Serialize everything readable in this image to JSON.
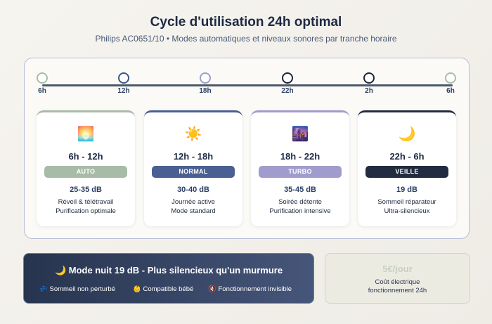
{
  "header": {
    "title": "Cycle d'utilisation 24h optimal",
    "subtitle": "Philips AC0651/10 • Modes automatiques et niveaux sonores par tranche horaire"
  },
  "timeline": {
    "ticks": [
      "6h",
      "12h",
      "18h",
      "22h",
      "2h",
      "6h"
    ],
    "dot_colors": [
      "#a9bda6",
      "#3f5688",
      "#9aa0c8",
      "#1c2536",
      "#1c2536",
      "#a9bda6"
    ]
  },
  "cards": [
    {
      "icon": "sunrise-icon",
      "glyph": "🌅",
      "hours": "6h - 12h",
      "badge": "AUTO",
      "badge_color": "#a7bba6",
      "db": "25-35 dB",
      "line1": "Réveil & télétravail",
      "line2": "Purification optimale"
    },
    {
      "icon": "sun-icon",
      "glyph": "☀️",
      "hours": "12h - 18h",
      "badge": "NORMAL",
      "badge_color": "#4a5f92",
      "db": "30-40 dB",
      "line1": "Journée active",
      "line2": "Mode standard"
    },
    {
      "icon": "city-dusk-icon",
      "glyph": "🌆",
      "hours": "18h - 22h",
      "badge": "TURBO",
      "badge_color": "#a09ccd",
      "db": "35-45 dB",
      "line1": "Soirée détente",
      "line2": "Purification intensive"
    },
    {
      "icon": "moon-icon",
      "glyph": "🌙",
      "hours": "22h - 6h",
      "badge": "VEILLE",
      "badge_color": "#222c40",
      "db": "19 dB",
      "line1": "Sommeil réparateur",
      "line2": "Ultra-silencieux"
    }
  ],
  "night_mode": {
    "icon": "moon-icon",
    "glyph": "🌙",
    "title": "Mode nuit 19 dB - Plus silencieux qu'un murmure",
    "features": [
      {
        "icon": "sleep-icon",
        "glyph": "💤",
        "label": "Sommeil non perturbé"
      },
      {
        "icon": "baby-icon",
        "glyph": "👶",
        "label": "Compatible bébé"
      },
      {
        "icon": "mute-icon",
        "glyph": "🔇",
        "label": "Fonctionnement invisible"
      }
    ]
  },
  "cost": {
    "value": "5€/jour",
    "line1": "Coût électrique",
    "line2": "fonctionnement 24h"
  }
}
